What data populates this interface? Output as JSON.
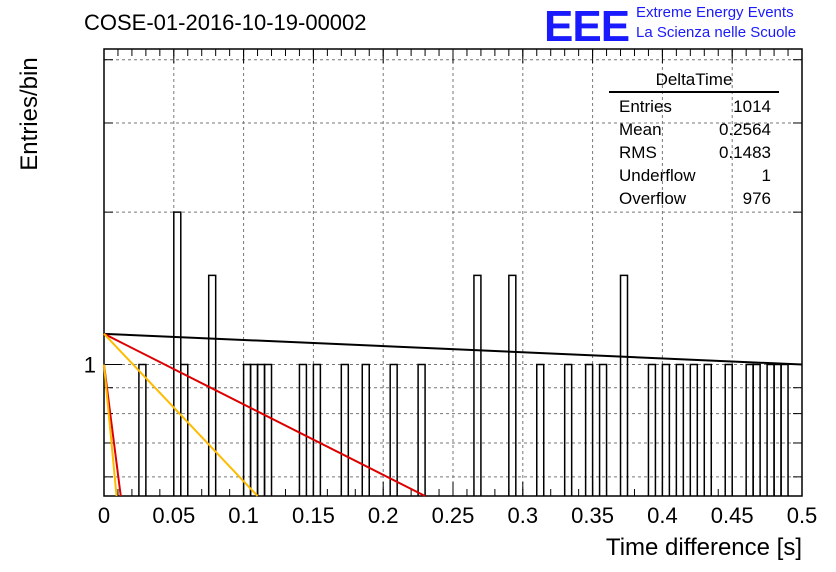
{
  "header": {
    "title": "COSE-01-2016-10-19-00002",
    "logo_text": "EEE",
    "logo_line1": "Extreme Energy Events",
    "logo_line2": "La Scienza nelle Scuole"
  },
  "stats_box": {
    "name": "DeltaTime",
    "rows": [
      {
        "label": "Entries",
        "value": "1014"
      },
      {
        "label": "Mean",
        "value": "0.2564"
      },
      {
        "label": "RMS",
        "value": "0.1483"
      },
      {
        "label": "Underflow",
        "value": "1"
      },
      {
        "label": "Overflow",
        "value": "976"
      }
    ]
  },
  "chart_data": {
    "type": "bar",
    "histogram_name": "DeltaTime",
    "xlabel": "Time difference [s]",
    "ylabel": "Entries/bin",
    "xlim": [
      0,
      0.5
    ],
    "log_y": true,
    "grid": true,
    "x_ticks": [
      "0",
      "0.05",
      "0.1",
      "0.15",
      "0.2",
      "0.25",
      "0.3",
      "0.35",
      "0.4",
      "0.45",
      "0.5"
    ],
    "y_ticks": [
      "1"
    ],
    "bin_width": 0.005,
    "bins": [
      {
        "x": 0.025,
        "y": 1
      },
      {
        "x": 0.05,
        "y": 2
      },
      {
        "x": 0.055,
        "y": 1
      },
      {
        "x": 0.075,
        "y": 1.5
      },
      {
        "x": 0.1,
        "y": 1
      },
      {
        "x": 0.105,
        "y": 1
      },
      {
        "x": 0.11,
        "y": 1
      },
      {
        "x": 0.115,
        "y": 1
      },
      {
        "x": 0.14,
        "y": 1
      },
      {
        "x": 0.15,
        "y": 1
      },
      {
        "x": 0.17,
        "y": 1
      },
      {
        "x": 0.185,
        "y": 1
      },
      {
        "x": 0.205,
        "y": 1
      },
      {
        "x": 0.225,
        "y": 1
      },
      {
        "x": 0.265,
        "y": 1.5
      },
      {
        "x": 0.29,
        "y": 1.5
      },
      {
        "x": 0.31,
        "y": 1
      },
      {
        "x": 0.33,
        "y": 1
      },
      {
        "x": 0.345,
        "y": 1
      },
      {
        "x": 0.355,
        "y": 1
      },
      {
        "x": 0.37,
        "y": 1.5
      },
      {
        "x": 0.39,
        "y": 1
      },
      {
        "x": 0.4,
        "y": 1
      },
      {
        "x": 0.41,
        "y": 1
      },
      {
        "x": 0.42,
        "y": 1
      },
      {
        "x": 0.43,
        "y": 1
      },
      {
        "x": 0.445,
        "y": 1
      },
      {
        "x": 0.46,
        "y": 1
      },
      {
        "x": 0.465,
        "y": 1
      },
      {
        "x": 0.475,
        "y": 1
      },
      {
        "x": 0.48,
        "y": 1
      },
      {
        "x": 0.485,
        "y": 1
      }
    ],
    "fit_lines": [
      {
        "color": "#000000",
        "points": [
          [
            0,
            1.15
          ],
          [
            0.5,
            1.0
          ]
        ]
      },
      {
        "color": "#dd0000",
        "points": [
          [
            0,
            1.15
          ],
          [
            0.23,
            0.55
          ]
        ]
      },
      {
        "color": "#ffbb00",
        "points": [
          [
            0,
            1.15
          ],
          [
            0.11,
            0.55
          ]
        ]
      },
      {
        "color": "#dd0000",
        "points": [
          [
            0,
            1.0
          ],
          [
            0.012,
            0.55
          ]
        ]
      },
      {
        "color": "#ffbb00",
        "points": [
          [
            0,
            1.0
          ],
          [
            0.009,
            0.55
          ]
        ]
      }
    ]
  }
}
